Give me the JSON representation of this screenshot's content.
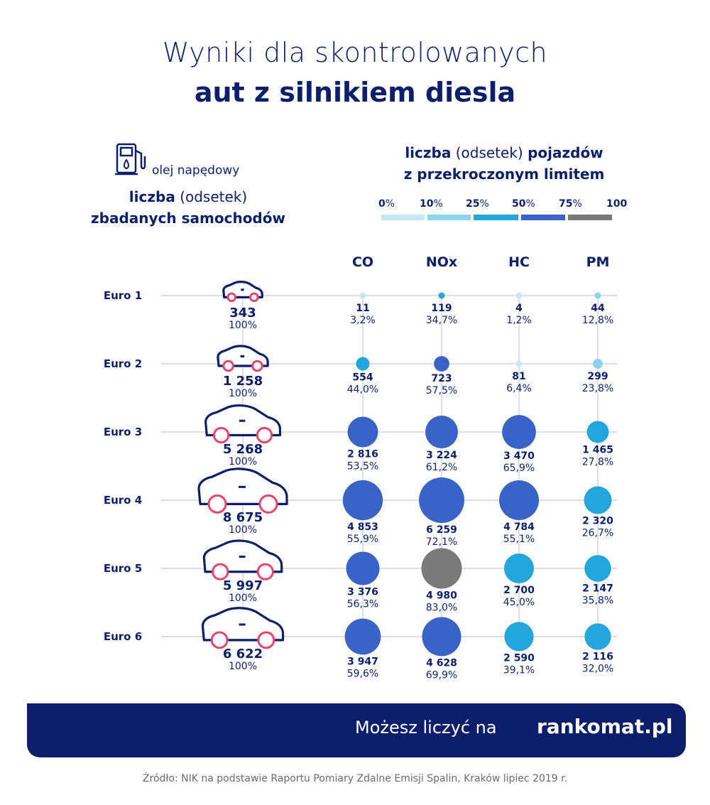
{
  "header": {
    "title_line1": "Wyniki dla skontrolowanych",
    "title_line2": "aut z silnikiem diesla"
  },
  "fuel": {
    "icon": "fuel-pump-icon",
    "label": "olej napędowy"
  },
  "studied_heading": {
    "bold1": "liczba",
    "light1": "(odsetek)",
    "line2": "zbadanych samochodów"
  },
  "exceeded_heading": {
    "bold1": "liczba",
    "light1": "(odsetek)",
    "bold2": "pojazdów",
    "line2": "z przekroczonym limitem"
  },
  "legend": {
    "labels": [
      {
        "num": "0",
        "pct": "%"
      },
      {
        "num": "10",
        "pct": "%"
      },
      {
        "num": "25",
        "pct": "%"
      },
      {
        "num": "50",
        "pct": "%"
      },
      {
        "num": "75",
        "pct": "%"
      },
      {
        "num": "100",
        "pct": ""
      }
    ],
    "colors": [
      "#c6e7f5",
      "#8ed2ee",
      "#22a6dc",
      "#3a63c8",
      "#7a7a7a"
    ]
  },
  "chart_data": {
    "type": "bubble-matrix",
    "columns": [
      "CO",
      "NOx",
      "HC",
      "PM"
    ],
    "rows": [
      {
        "label": "Euro 1",
        "cars": "343",
        "cars_value": 343,
        "cars_pct": "100%",
        "car_icon": "car-icon",
        "cells": [
          {
            "count": "11",
            "count_value": 11,
            "pct": "3,2%",
            "pct_value": 3.2
          },
          {
            "count": "119",
            "count_value": 119,
            "pct": "34,7%",
            "pct_value": 34.7
          },
          {
            "count": "4",
            "count_value": 4,
            "pct": "1,2%",
            "pct_value": 1.2
          },
          {
            "count": "44",
            "count_value": 44,
            "pct": "12,8%",
            "pct_value": 12.8
          }
        ]
      },
      {
        "label": "Euro 2",
        "cars": "1 258",
        "cars_value": 1258,
        "cars_pct": "100%",
        "car_icon": "car-icon",
        "cells": [
          {
            "count": "554",
            "count_value": 554,
            "pct": "44,0%",
            "pct_value": 44.0
          },
          {
            "count": "723",
            "count_value": 723,
            "pct": "57,5%",
            "pct_value": 57.5
          },
          {
            "count": "81",
            "count_value": 81,
            "pct": "6,4%",
            "pct_value": 6.4
          },
          {
            "count": "299",
            "count_value": 299,
            "pct": "23,8%",
            "pct_value": 23.8
          }
        ]
      },
      {
        "label": "Euro 3",
        "cars": "5 268",
        "cars_value": 5268,
        "cars_pct": "100%",
        "car_icon": "car-icon",
        "cells": [
          {
            "count": "2 816",
            "count_value": 2816,
            "pct": "53,5%",
            "pct_value": 53.5
          },
          {
            "count": "3 224",
            "count_value": 3224,
            "pct": "61,2%",
            "pct_value": 61.2
          },
          {
            "count": "3 470",
            "count_value": 3470,
            "pct": "65,9%",
            "pct_value": 65.9
          },
          {
            "count": "1 465",
            "count_value": 1465,
            "pct": "27,8%",
            "pct_value": 27.8
          }
        ]
      },
      {
        "label": "Euro 4",
        "cars": "8 675",
        "cars_value": 8675,
        "cars_pct": "100%",
        "car_icon": "car-icon",
        "cells": [
          {
            "count": "4 853",
            "count_value": 4853,
            "pct": "55,9%",
            "pct_value": 55.9
          },
          {
            "count": "6 259",
            "count_value": 6259,
            "pct": "72,1%",
            "pct_value": 72.1
          },
          {
            "count": "4 784",
            "count_value": 4784,
            "pct": "55,1%",
            "pct_value": 55.1
          },
          {
            "count": "2 320",
            "count_value": 2320,
            "pct": "26,7%",
            "pct_value": 26.7
          }
        ]
      },
      {
        "label": "Euro 5",
        "cars": "5 997",
        "cars_value": 5997,
        "cars_pct": "100%",
        "car_icon": "car-icon",
        "cells": [
          {
            "count": "3 376",
            "count_value": 3376,
            "pct": "56,3%",
            "pct_value": 56.3
          },
          {
            "count": "4 980",
            "count_value": 4980,
            "pct": "83,0%",
            "pct_value": 83.0
          },
          {
            "count": "2 700",
            "count_value": 2700,
            "pct": "45,0%",
            "pct_value": 45.0
          },
          {
            "count": "2 147",
            "count_value": 2147,
            "pct": "35,8%",
            "pct_value": 35.8
          }
        ]
      },
      {
        "label": "Euro 6",
        "cars": "6 622",
        "cars_value": 6622,
        "cars_pct": "100%",
        "car_icon": "car-icon",
        "cells": [
          {
            "count": "3 947",
            "count_value": 3947,
            "pct": "59,6%",
            "pct_value": 59.6
          },
          {
            "count": "4 628",
            "count_value": 4628,
            "pct": "69,9%",
            "pct_value": 69.9
          },
          {
            "count": "2 590",
            "count_value": 2590,
            "pct": "39,1%",
            "pct_value": 39.1
          },
          {
            "count": "2 116",
            "count_value": 2116,
            "pct": "32,0%",
            "pct_value": 32.0
          }
        ]
      }
    ]
  },
  "colors": {
    "navy": "#0d1f6b",
    "car_wheel": "#e9446a",
    "grid": "#c8ccd6",
    "bubble_0_10": "#c6e7f5",
    "bubble_10_25": "#8ed2ee",
    "bubble_25_50": "#22a6dc",
    "bubble_50_75": "#3a63c8",
    "bubble_75_100": "#7a7a7a"
  },
  "footer": {
    "text": "Możesz liczyć na",
    "brand": "rankomat.pl"
  },
  "source": "Źródło: NIK na podstawie Raportu Pomiary Zdalne Emisji Spalin, Kraków lipiec 2019 r."
}
